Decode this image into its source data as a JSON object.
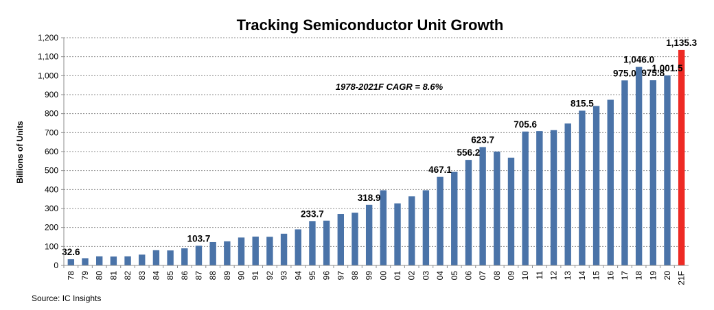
{
  "chart_data": {
    "type": "bar",
    "title": "Tracking Semiconductor Unit Growth",
    "ylabel": "Billions of Units",
    "xlabel": "",
    "ylim": [
      0,
      1200
    ],
    "yticks": [
      "0",
      "100",
      "200",
      "300",
      "400",
      "500",
      "600",
      "700",
      "800",
      "900",
      "1,000",
      "1,100",
      "1,200"
    ],
    "grid": true,
    "categories": [
      "78",
      "79",
      "80",
      "81",
      "82",
      "83",
      "84",
      "85",
      "86",
      "87",
      "88",
      "89",
      "90",
      "91",
      "92",
      "93",
      "94",
      "95",
      "96",
      "97",
      "98",
      "99",
      "00",
      "01",
      "02",
      "03",
      "04",
      "05",
      "06",
      "07",
      "08",
      "09",
      "10",
      "11",
      "12",
      "13",
      "14",
      "15",
      "16",
      "17",
      "18",
      "19",
      "20",
      "21F"
    ],
    "values": [
      32.6,
      38,
      48,
      47,
      48,
      57,
      80,
      79,
      90,
      103.7,
      123,
      127,
      147,
      152,
      151,
      167,
      190,
      233.7,
      236,
      271,
      278,
      318.9,
      396,
      327,
      364,
      396,
      467.1,
      493,
      556.2,
      623.7,
      600,
      568,
      705.6,
      708,
      713,
      748,
      815.5,
      840,
      873,
      975.0,
      1046.0,
      975.8,
      1001.5,
      1135.3
    ],
    "data_labels": [
      {
        "index": 0,
        "text": "32.6"
      },
      {
        "index": 9,
        "text": "103.7"
      },
      {
        "index": 17,
        "text": "233.7"
      },
      {
        "index": 21,
        "text": "318.9"
      },
      {
        "index": 26,
        "text": "467.1"
      },
      {
        "index": 28,
        "text": "556.2"
      },
      {
        "index": 29,
        "text": "623.7"
      },
      {
        "index": 32,
        "text": "705.6"
      },
      {
        "index": 36,
        "text": "815.5"
      },
      {
        "index": 39,
        "text": "975.0"
      },
      {
        "index": 40,
        "text": "1,046.0"
      },
      {
        "index": 41,
        "text": "975.8"
      },
      {
        "index": 42,
        "text": "1,001.5"
      },
      {
        "index": 43,
        "text": "1,135.3"
      }
    ],
    "annotation": "1978-2021F CAGR = 8.6%",
    "colors": {
      "bar": "#4a73a8",
      "highlight": "#ee2a24",
      "grid": "#8c8c8c"
    },
    "highlight_category": "21F"
  },
  "source": "Source:  IC Insights"
}
